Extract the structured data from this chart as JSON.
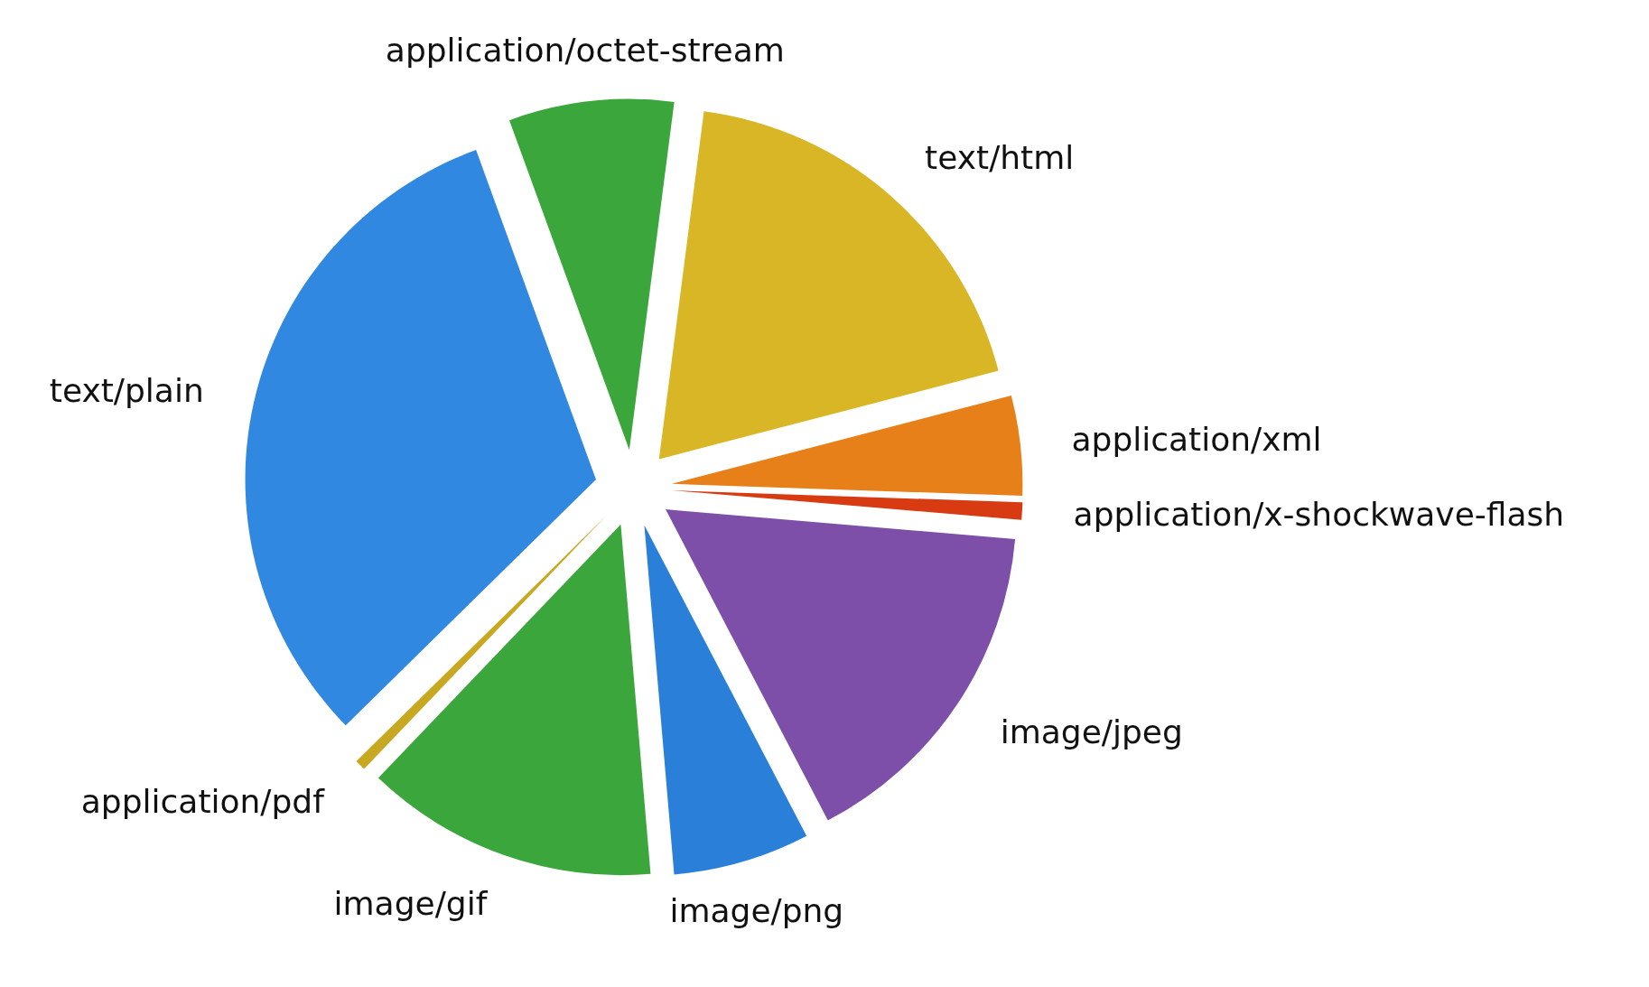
{
  "chart_data": {
    "type": "pie",
    "categories": [
      "application/octet-stream",
      "text/html",
      "application/xml",
      "application/x-shockwave-flash",
      "image/jpeg",
      "image/png",
      "image/gif",
      "application/pdf",
      "text/plain"
    ],
    "values": [
      7.6,
      18.9,
      4.6,
      0.8,
      16,
      6.3,
      13.5,
      0.5,
      31.8
    ],
    "colors": [
      "#3aa63c",
      "#d8b625",
      "#e8801a",
      "#d83a12",
      "#7e4fa8",
      "#2a80d8",
      "#3aa63c",
      "#c8a820",
      "#3088e0"
    ]
  }
}
